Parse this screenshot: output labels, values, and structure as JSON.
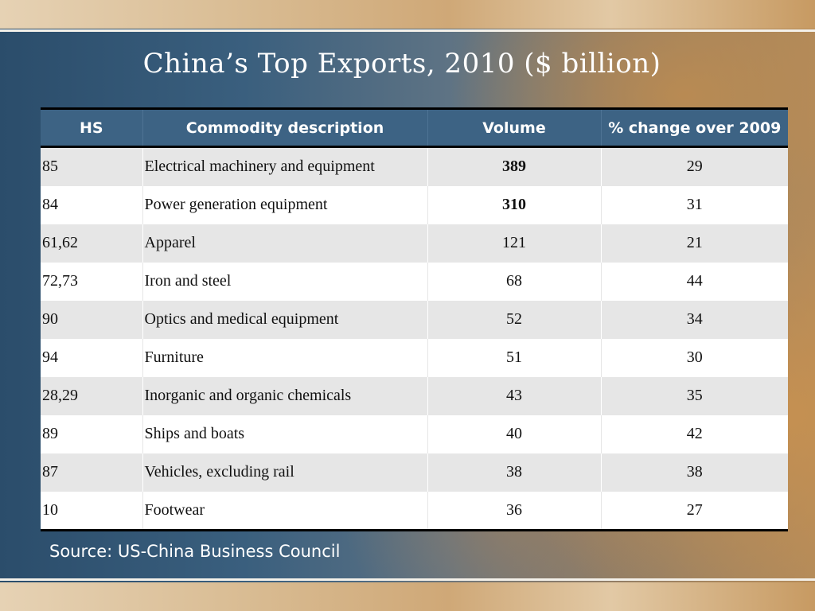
{
  "title": "China’s Top Exports, 2010 ($ billion)",
  "table": {
    "headers": [
      "HS",
      "Commodity description",
      "Volume",
      "% change over 2009"
    ],
    "rows": [
      {
        "hs": "85",
        "description": "Electrical machinery and equipment",
        "volume": "389",
        "change": "29",
        "volume_bold": true
      },
      {
        "hs": "84",
        "description": "Power generation equipment",
        "volume": "310",
        "change": "31",
        "volume_bold": true
      },
      {
        "hs": "61,62",
        "description": "Apparel",
        "volume": "121",
        "change": "21",
        "volume_bold": false
      },
      {
        "hs": "72,73",
        "description": "Iron and steel",
        "volume": "68",
        "change": "44",
        "volume_bold": false
      },
      {
        "hs": "90",
        "description": "Optics and medical  equipment",
        "volume": "52",
        "change": "34",
        "volume_bold": false
      },
      {
        "hs": "94",
        "description": "Furniture",
        "volume": "51",
        "change": "30",
        "volume_bold": false
      },
      {
        "hs": "28,29",
        "description": "Inorganic and organic chemicals",
        "volume": "43",
        "change": "35",
        "volume_bold": false
      },
      {
        "hs": "89",
        "description": "Ships and boats",
        "volume": "40",
        "change": "42",
        "volume_bold": false
      },
      {
        "hs": "87",
        "description": "Vehicles, excluding rail",
        "volume": "38",
        "change": "38",
        "volume_bold": false
      },
      {
        "hs": "10",
        "description": "Footwear",
        "volume": "36",
        "change": "27",
        "volume_bold": false
      }
    ]
  },
  "source": "Source: US-China Business Council",
  "colors": {
    "header_bg": "#3d6384",
    "row_alt_bg": "#e6e6e6"
  }
}
